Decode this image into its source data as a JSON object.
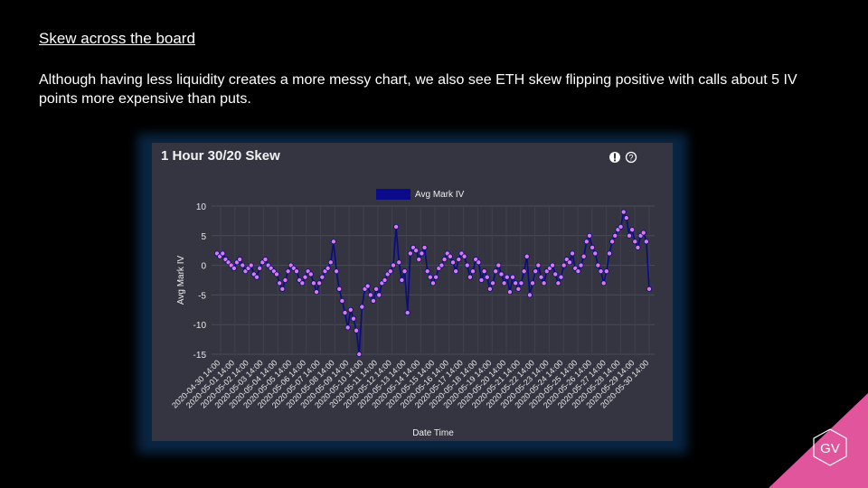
{
  "slide": {
    "title": "Skew across the board",
    "body": "Although having less liquidity  creates a more messy chart, we also see ETH skew flipping  positive with calls about 5 IV points more expensive than puts.",
    "logo_text": "GV",
    "colors": {
      "background": "#000000",
      "accent": "#e0559c"
    }
  },
  "widget": {
    "title": "1 Hour 30/20 Skew",
    "alert_icon": "exclamation-circle-icon",
    "help_icon": "question-circle-icon",
    "background": "#343540"
  },
  "chart_data": {
    "type": "line",
    "title": "",
    "xlabel": "Date Time",
    "ylabel": "Avg Mark IV",
    "ylim": [
      -15,
      10
    ],
    "yticks": [
      10,
      5,
      0,
      -5,
      -10,
      -15
    ],
    "grid": true,
    "legend": {
      "position": "top-center",
      "entries": [
        "Avg Mark IV"
      ]
    },
    "series_style": {
      "line": "#0a0a8a",
      "marker_fill": "#d77ce0",
      "marker_stroke": "#0a0a8a"
    },
    "x_ticks": [
      "2020-04-30 14:00",
      "2020-05-01 14:00",
      "2020-05-02 14:00",
      "2020-05-03 14:00",
      "2020-05-04 14:00",
      "2020-05-05 14:00",
      "2020-05-06 14:00",
      "2020-05-07 14:00",
      "2020-05-08 14:00",
      "2020-05-09 14:00",
      "2020-05-10 14:00",
      "2020-05-11 14:00",
      "2020-05-12 14:00",
      "2020-05-13 14:00",
      "2020-05-14 14:00",
      "2020-05-15 14:00",
      "2020-05-16 14:00",
      "2020-05-17 14:00",
      "2020-05-18 14:00",
      "2020-05-19 14:00",
      "2020-05-20 14:00",
      "2020-05-21 14:00",
      "2020-05-22 14:00",
      "2020-05-23 14:00",
      "2020-05-24 14:00",
      "2020-05-25 14:00",
      "2020-05-26 14:00",
      "2020-05-27 14:00",
      "2020-05-28 14:00",
      "2020-05-29 14:00",
      "2020-05-30 14:00"
    ],
    "series": [
      {
        "name": "Avg Mark IV",
        "values": [
          2.0,
          1.5,
          2.0,
          1.0,
          0.5,
          0.0,
          -0.5,
          0.5,
          1.0,
          0.0,
          -1.0,
          -0.5,
          0.0,
          -1.5,
          -2.0,
          -0.5,
          0.5,
          1.0,
          0.0,
          -0.5,
          -1.0,
          -1.5,
          -3.0,
          -4.0,
          -2.5,
          -1.0,
          0.0,
          -0.5,
          -1.0,
          -2.5,
          -3.0,
          -2.0,
          -1.0,
          -1.5,
          -3.0,
          -4.5,
          -3.0,
          -2.0,
          -1.0,
          -0.5,
          0.5,
          4.0,
          -1.0,
          -4.0,
          -6.0,
          -8.0,
          -10.5,
          -7.5,
          -9.0,
          -11.0,
          -15.0,
          -7.0,
          -4.0,
          -3.5,
          -5.0,
          -6.0,
          -4.0,
          -5.0,
          -3.0,
          -2.5,
          -1.5,
          -1.0,
          0.0,
          6.5,
          0.5,
          -2.5,
          -1.0,
          -8.0,
          2.0,
          3.0,
          2.5,
          1.0,
          2.0,
          3.0,
          -1.0,
          -2.0,
          -3.0,
          -2.0,
          -0.5,
          0.0,
          1.0,
          2.0,
          1.5,
          0.5,
          -1.0,
          1.0,
          2.0,
          1.5,
          0.0,
          -2.0,
          -1.0,
          1.0,
          0.5,
          -2.5,
          -1.0,
          -2.0,
          -4.0,
          -3.0,
          -1.0,
          0.0,
          -1.5,
          -3.0,
          -2.0,
          -4.5,
          -2.0,
          -3.0,
          -4.0,
          -3.0,
          -1.0,
          1.5,
          -5.0,
          -3.0,
          -1.0,
          0.0,
          -2.0,
          -3.0,
          -1.0,
          -0.5,
          0.0,
          -1.5,
          -3.0,
          -2.0,
          0.0,
          1.0,
          0.5,
          2.0,
          -0.5,
          -1.0,
          0.0,
          1.5,
          4.0,
          5.0,
          3.0,
          2.0,
          0.0,
          -1.0,
          -3.0,
          -1.0,
          2.0,
          4.0,
          5.0,
          6.0,
          6.5,
          9.0,
          8.0,
          5.0,
          6.0,
          4.0,
          3.0,
          5.0,
          5.5,
          4.0,
          -4.0
        ]
      }
    ]
  }
}
